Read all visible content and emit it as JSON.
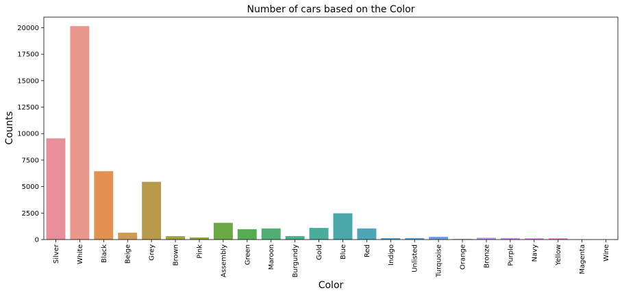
{
  "chart_data": {
    "type": "bar",
    "title": "Number of cars based on the Color",
    "xlabel": "Color",
    "ylabel": "Counts",
    "ylim": [
      0,
      21000
    ],
    "yticks": [
      0,
      2500,
      5000,
      7500,
      10000,
      12500,
      15000,
      17500,
      20000
    ],
    "grid": false,
    "categories": [
      "Silver",
      "White",
      "Black",
      "Beige",
      "Grey",
      "Brown",
      "Pink",
      "Assembly",
      "Green",
      "Maroon",
      "Burgundy",
      "Gold",
      "Blue",
      "Red",
      "Indigo",
      "Unlisted",
      "Turquoise",
      "Orange",
      "Bronze",
      "Purple",
      "Navy",
      "Yellow",
      "Magenta",
      "Wine"
    ],
    "values": [
      9550,
      20150,
      6450,
      650,
      5450,
      320,
      200,
      1580,
      980,
      1050,
      330,
      1100,
      2480,
      1050,
      130,
      140,
      260,
      60,
      170,
      140,
      120,
      120,
      15,
      10
    ],
    "colors": [
      "#e88f9b",
      "#e8978a",
      "#e3914f",
      "#cc9b55",
      "#b89b4a",
      "#a5a142",
      "#8fa540",
      "#6aa844",
      "#55ad52",
      "#4faf73",
      "#4daf90",
      "#4aac9c",
      "#4aa8ab",
      "#4ba7b8",
      "#50a4c8",
      "#5aa1d8",
      "#6c9ee6",
      "#969ce8",
      "#b397e8",
      "#c68fe8",
      "#d98be5",
      "#e386d3",
      "#e68ac2",
      "#e88daf"
    ]
  }
}
